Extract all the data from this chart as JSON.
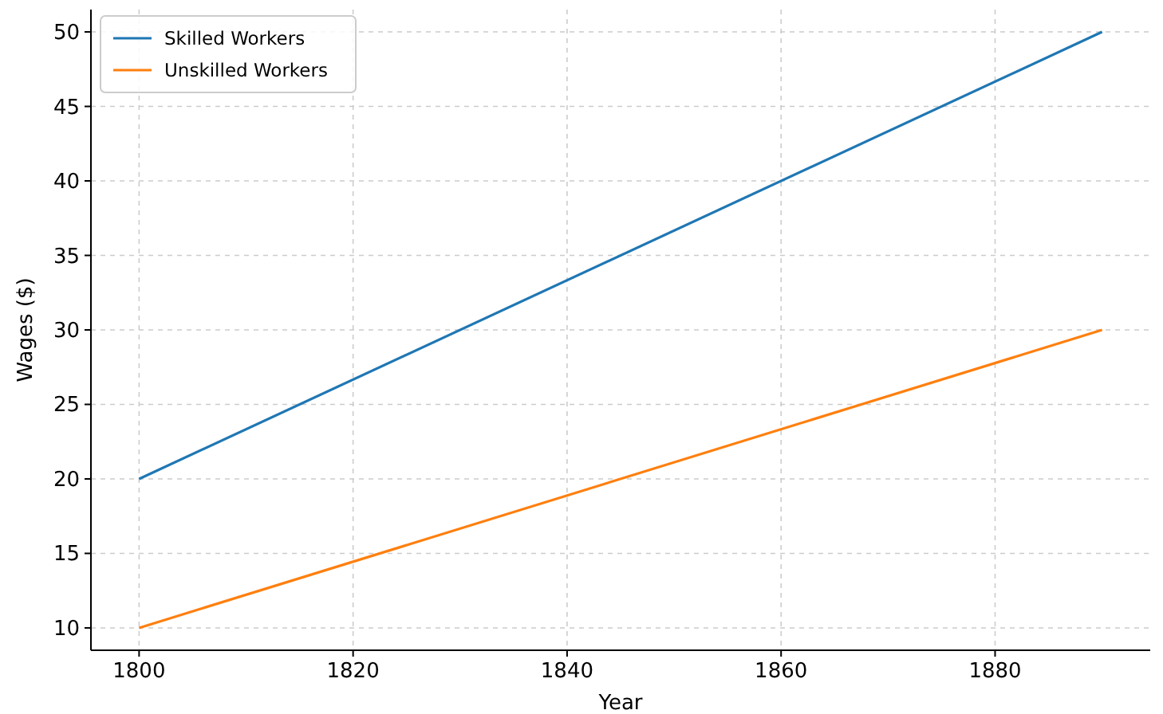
{
  "chart_data": {
    "type": "line",
    "xlabel": "Year",
    "ylabel": "Wages ($)",
    "x": [
      1800,
      1890
    ],
    "series": [
      {
        "name": "Skilled Workers",
        "color": "#1f77b4",
        "values": [
          20,
          50
        ]
      },
      {
        "name": "Unskilled Workers",
        "color": "#ff7f0e",
        "values": [
          10,
          30
        ]
      }
    ],
    "xlim": [
      1795.5,
      1894.5
    ],
    "xticks": [
      1800,
      1820,
      1840,
      1860,
      1880
    ],
    "ylim": [
      8.5,
      51.5
    ],
    "yticks": [
      10,
      15,
      20,
      25,
      30,
      35,
      40,
      45,
      50
    ],
    "grid": true,
    "legend": "top left",
    "line_style": "solid"
  }
}
